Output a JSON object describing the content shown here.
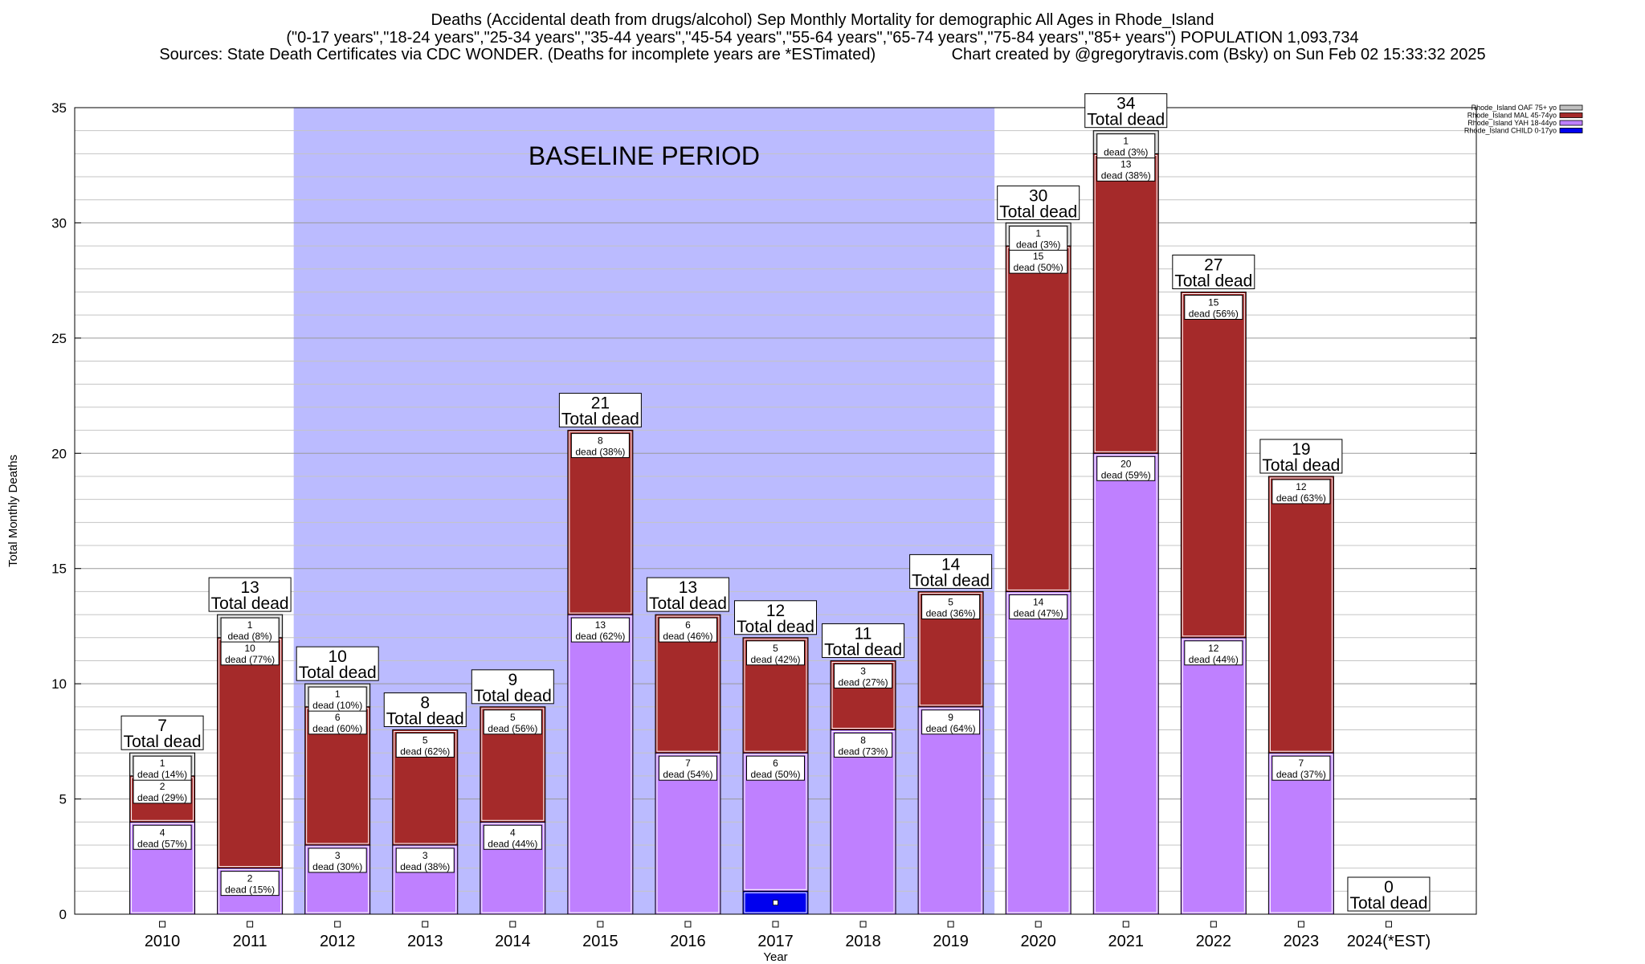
{
  "chart_data": {
    "type": "bar",
    "title_lines": [
      "Deaths (Accidental death from drugs/alcohol) Sep Monthly Mortality for demographic All Ages in Rhode_Island",
      "(\"0-17 years\",\"18-24 years\",\"25-34 years\",\"35-44 years\",\"45-54 years\",\"55-64 years\",\"65-74 years\",\"75-84 years\",\"85+ years\") POPULATION 1,093,734",
      "Sources: State Death Certificates via CDC WONDER. (Deaths for incomplete years are *ESTimated)                 Chart created by @gregorytravis.com (Bsky) on Sun Feb 02 15:33:32 2025"
    ],
    "xlabel": "Year",
    "ylabel": "Total Monthly Deaths",
    "ylim": [
      0,
      35
    ],
    "yticks": [
      0,
      5,
      10,
      15,
      20,
      25,
      30,
      35
    ],
    "stacked": true,
    "grid": "horizontal",
    "legend_position": "top-right",
    "baseline_label": "BASELINE PERIOD",
    "baseline_range": [
      "2012",
      "2019"
    ],
    "total_label_suffix": "Total dead",
    "segment_label_word": "dead",
    "categories": [
      "2010",
      "2011",
      "2012",
      "2013",
      "2014",
      "2015",
      "2016",
      "2017",
      "2018",
      "2019",
      "2020",
      "2021",
      "2022",
      "2023",
      "2024(*EST)"
    ],
    "series": [
      {
        "name": "Rhode_Island CHILD 0-17yo",
        "color": "#0000ee",
        "values": [
          0,
          0,
          0,
          0,
          0,
          0,
          0,
          1,
          0,
          0,
          0,
          0,
          0,
          0,
          0
        ],
        "labels": [
          null,
          null,
          null,
          null,
          null,
          null,
          null,
          null,
          null,
          null,
          null,
          null,
          null,
          null,
          null
        ]
      },
      {
        "name": "Rhode_Island YAH 18-44yo",
        "color": "#bf80ff",
        "values": [
          4,
          2,
          3,
          3,
          4,
          13,
          7,
          6,
          8,
          9,
          14,
          20,
          12,
          7,
          0
        ],
        "labels": [
          "(57%)",
          "(15%)",
          "(30%)",
          "(38%)",
          "(44%)",
          "(62%)",
          "(54%)",
          "(50%)",
          "(73%)",
          "(64%)",
          "(47%)",
          "(59%)",
          "(44%)",
          "(37%)",
          null
        ]
      },
      {
        "name": "Rhode_Island MAL 45-74yo",
        "color": "#a52a2a",
        "values": [
          2,
          10,
          6,
          5,
          5,
          8,
          6,
          5,
          3,
          5,
          15,
          13,
          15,
          12,
          0
        ],
        "labels": [
          "(29%)",
          "(77%)",
          "(60%)",
          "(62%)",
          "(56%)",
          "(38%)",
          "(46%)",
          "(42%)",
          "(27%)",
          "(36%)",
          "(50%)",
          "(38%)",
          "(56%)",
          "(63%)",
          null
        ]
      },
      {
        "name": "Rhode_Island OAF 75+ yo",
        "color": "#c0c0c0",
        "values": [
          1,
          1,
          1,
          0,
          0,
          0,
          0,
          0,
          0,
          0,
          1,
          1,
          0,
          0,
          0
        ],
        "labels": [
          "(14%)",
          "(8%)",
          "(10%)",
          null,
          null,
          null,
          null,
          null,
          null,
          null,
          "(3%)",
          "(3%)",
          null,
          null,
          null
        ]
      }
    ],
    "totals": [
      7,
      13,
      10,
      8,
      9,
      21,
      13,
      12,
      11,
      14,
      30,
      34,
      27,
      19,
      0
    ]
  }
}
